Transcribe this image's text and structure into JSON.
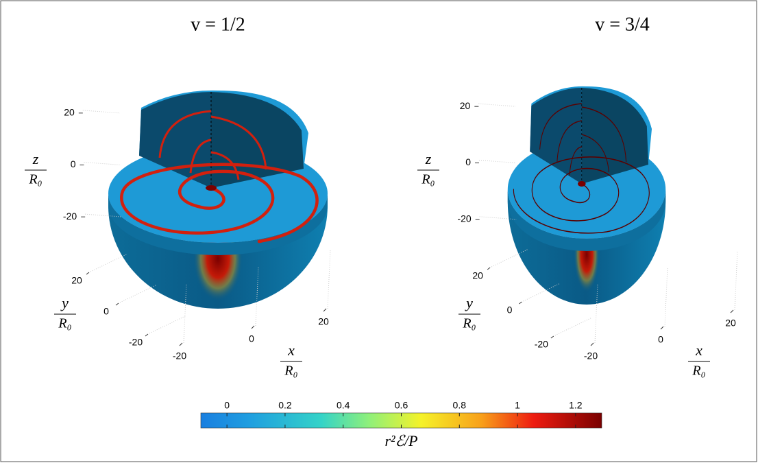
{
  "chart_data": {
    "type": "surface3d",
    "panels": [
      {
        "title": "v = 1/2",
        "x_label": {
          "num": "x",
          "den": "R₀"
        },
        "y_label": {
          "num": "y",
          "den": "R₀"
        },
        "z_label": {
          "num": "z",
          "den": "R₀"
        },
        "xlim": [
          -30,
          30
        ],
        "ylim": [
          -30,
          30
        ],
        "zlim": [
          -30,
          30
        ],
        "xticks": [
          -20,
          0,
          20
        ],
        "yticks": [
          -20,
          0,
          20
        ],
        "zticks": [
          -20,
          0,
          20
        ]
      },
      {
        "title": "v = 3/4",
        "x_label": {
          "num": "x",
          "den": "R₀"
        },
        "y_label": {
          "num": "y",
          "den": "R₀"
        },
        "z_label": {
          "num": "z",
          "den": "R₀"
        },
        "xlim": [
          -30,
          30
        ],
        "ylim": [
          -30,
          30
        ],
        "zlim": [
          -30,
          30
        ],
        "xticks": [
          -20,
          0,
          20
        ],
        "yticks": [
          -20,
          0,
          20
        ],
        "zticks": [
          -20,
          0,
          20
        ]
      }
    ],
    "colorbar": {
      "label": "r²ℰ/P",
      "lim": [
        -0.09,
        1.29
      ],
      "ticks": [
        0,
        0.2,
        0.4,
        0.6,
        0.8,
        1,
        1.2
      ],
      "colormap": "jet"
    }
  }
}
